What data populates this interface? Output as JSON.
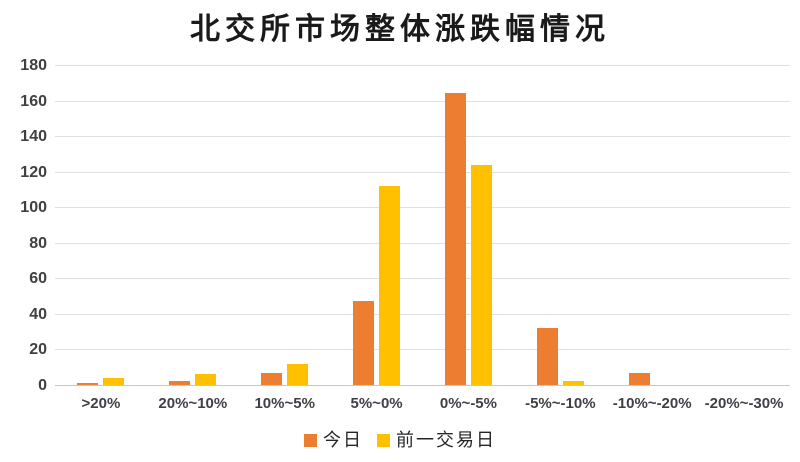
{
  "title": "北交所市场整体涨跌幅情况",
  "colors": {
    "series_today": "#ED7D31",
    "series_prev": "#FFC000",
    "gridline": "#E0E0E0",
    "axis_baseline": "#C6C6C6",
    "tick_text": "#404040",
    "title_text": "#1A1A1A",
    "background": "#FFFFFF"
  },
  "legend": {
    "items": [
      {
        "label": "今日",
        "color": "#ED7D31"
      },
      {
        "label": "前一交易日",
        "color": "#FFC000"
      }
    ]
  },
  "chart_data": {
    "type": "bar",
    "title": "北交所市场整体涨跌幅情况",
    "categories": [
      ">20%",
      "20%~10%",
      "10%~5%",
      "5%~0%",
      "0%~-5%",
      "-5%~-10%",
      "-10%~-20%",
      "-20%~-30%"
    ],
    "series": [
      {
        "name": "今日",
        "color": "#ED7D31",
        "values": [
          1,
          2,
          7,
          47,
          164,
          32,
          7,
          0
        ]
      },
      {
        "name": "前一交易日",
        "color": "#FFC000",
        "values": [
          4,
          6,
          12,
          112,
          124,
          2,
          0,
          0
        ]
      }
    ],
    "xlabel": "",
    "ylabel": "",
    "ylim": [
      0,
      180
    ],
    "yticks": [
      0,
      20,
      40,
      60,
      80,
      100,
      120,
      140,
      160,
      180
    ],
    "grid": true,
    "legend_position": "bottom"
  }
}
